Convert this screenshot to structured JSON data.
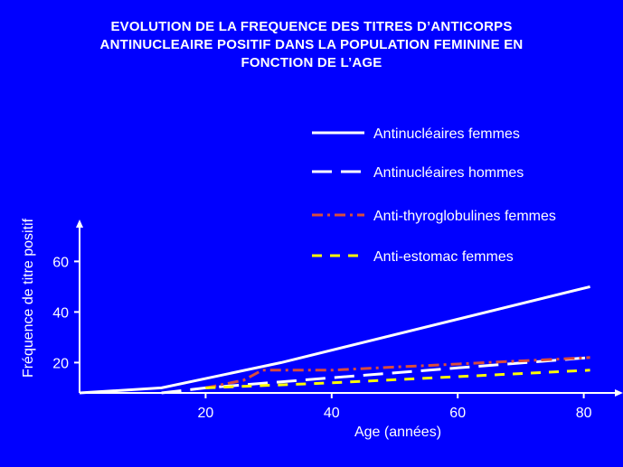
{
  "title_lines": [
    "EVOLUTION DE LA FREQUENCE DES TITRES   D’ANTICORPS",
    "ANTINUCLEAIRE POSITIF DANS LA POPULATION FEMININE EN",
    "FONCTION DE L’AGE"
  ],
  "chart_data": {
    "type": "line",
    "title": "EVOLUTION DE LA FREQUENCE DES TITRES D’ANTICORPS ANTINUCLEAIRE POSITIF DANS LA POPULATION FEMININE EN FONCTION DE L’AGE",
    "xlabel": "Age (années)",
    "ylabel": "Fréquence de titre positif",
    "xticks": [
      20,
      40,
      60,
      80
    ],
    "yticks": [
      20,
      40,
      60
    ],
    "xlim": [
      0,
      85
    ],
    "ylim": [
      8,
      72
    ],
    "grid": false,
    "legend_position": "top-right",
    "series": [
      {
        "name": "Antinucléaires femmes",
        "style": "solid",
        "color": "#ffffff",
        "x": [
          0,
          13,
          32,
          81
        ],
        "y": [
          8,
          10,
          20,
          50
        ]
      },
      {
        "name": "Antinucléaires hommes",
        "style": "longdash",
        "color": "#ffffff",
        "x": [
          13,
          20,
          30,
          40,
          81
        ],
        "y": [
          8,
          10,
          12,
          14,
          22
        ]
      },
      {
        "name": "Anti-thyroglobulines femmes",
        "style": "dashdot",
        "color": "#d94c3c",
        "x": [
          20,
          26,
          29,
          40,
          81
        ],
        "y": [
          10,
          13,
          17,
          17,
          22
        ]
      },
      {
        "name": "Anti-estomac femmes",
        "style": "dash",
        "color": "#ffff00",
        "x": [
          20,
          40,
          81
        ],
        "y": [
          10,
          12,
          17
        ]
      }
    ]
  }
}
